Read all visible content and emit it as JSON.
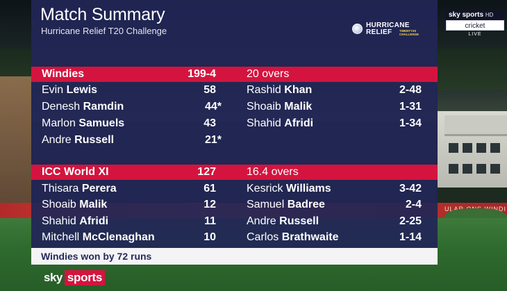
{
  "header": {
    "title": "Match Summary",
    "subtitle": "Hurricane Relief T20 Challenge"
  },
  "logo": {
    "line1": "HURRICANE",
    "line2": "RELIEF",
    "small": "TWENTY20 CHALLENGE"
  },
  "background": {
    "ad_text": "ULAR ONS WINDI"
  },
  "channel_bug": {
    "brand": "sky sports",
    "hd": "HD",
    "channel": "cricket",
    "status": "LIVE"
  },
  "innings": [
    {
      "team": "Windies",
      "score": "199-4",
      "overs": "20 overs",
      "batters": [
        {
          "first": "Evin",
          "last": "Lewis",
          "runs": "58"
        },
        {
          "first": "Denesh",
          "last": "Ramdin",
          "runs": "44*"
        },
        {
          "first": "Marlon",
          "last": "Samuels",
          "runs": "43"
        },
        {
          "first": "Andre",
          "last": "Russell",
          "runs": "21*"
        }
      ],
      "bowlers": [
        {
          "first": "Rashid",
          "last": "Khan",
          "figures": "2-48"
        },
        {
          "first": "Shoaib",
          "last": "Malik",
          "figures": "1-31"
        },
        {
          "first": "Shahid",
          "last": "Afridi",
          "figures": "1-34"
        }
      ]
    },
    {
      "team": "ICC World XI",
      "score": "127",
      "overs": "16.4 overs",
      "batters": [
        {
          "first": "Thisara",
          "last": "Perera",
          "runs": "61"
        },
        {
          "first": "Shoaib",
          "last": "Malik",
          "runs": "12"
        },
        {
          "first": "Shahid",
          "last": "Afridi",
          "runs": "11"
        },
        {
          "first": "Mitchell",
          "last": "McClenaghan",
          "runs": "10"
        }
      ],
      "bowlers": [
        {
          "first": "Kesrick",
          "last": "Williams",
          "figures": "3-42"
        },
        {
          "first": "Samuel",
          "last": "Badree",
          "figures": "2-4"
        },
        {
          "first": "Andre",
          "last": "Russell",
          "figures": "2-25"
        },
        {
          "first": "Carlos",
          "last": "Brathwaite",
          "figures": "1-14"
        }
      ]
    }
  ],
  "result": "Windies won by 72 runs",
  "footer": {
    "sky": "sky",
    "sports": "sports"
  },
  "colors": {
    "panel": "#212656",
    "accent_red": "#d4143f",
    "result_bg": "#f4f4f6"
  }
}
